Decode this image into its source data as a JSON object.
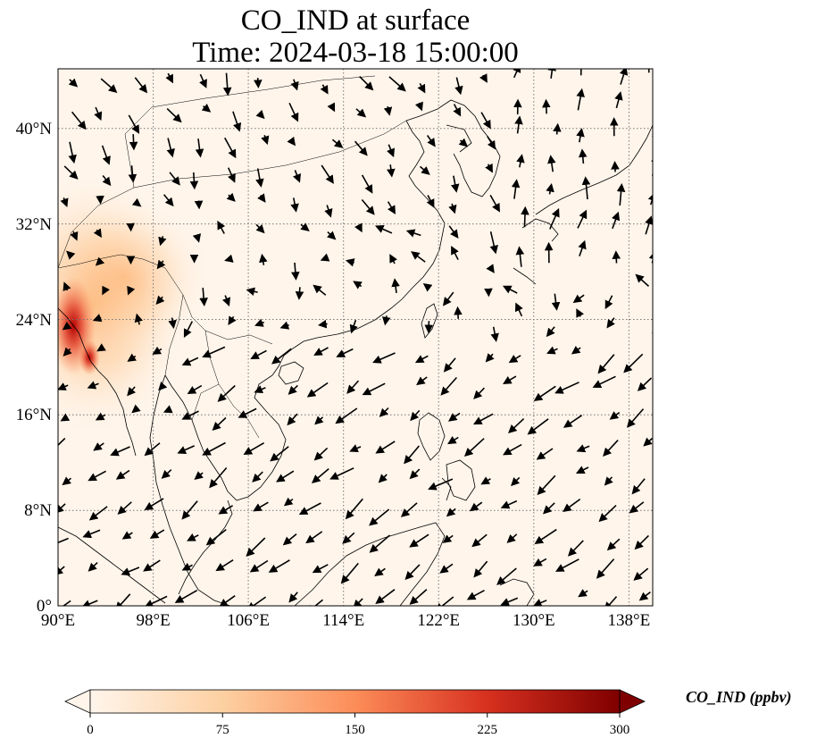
{
  "title_line1": "CO_IND at surface",
  "title_line2": "Time: 2024-03-18 15:00:00",
  "map": {
    "lon_range": [
      90,
      140
    ],
    "lat_range": [
      0,
      45
    ],
    "lon_ticks": [
      "90°E",
      "98°E",
      "106°E",
      "114°E",
      "122°E",
      "130°E",
      "138°E"
    ],
    "lat_ticks": [
      "0°",
      "8°N",
      "16°N",
      "24°N",
      "32°N",
      "40°N"
    ],
    "gridlines": "dotted",
    "field": "CO_IND",
    "vector_field": "surface wind arrows",
    "hotspot_region": "Myanmar / Bangladesh border (~90–93°E, 19–26°N)"
  },
  "colorbar": {
    "label": "CO_IND (ppbv)",
    "ticks": [
      "0",
      "75",
      "150",
      "225",
      "300"
    ],
    "min": 0,
    "max": 300,
    "colormap": [
      "#fff5eb",
      "#fdd0a2",
      "#fd8d3c",
      "#d94801",
      "#8c2d04",
      "#7f0000"
    ],
    "extend": "both"
  }
}
